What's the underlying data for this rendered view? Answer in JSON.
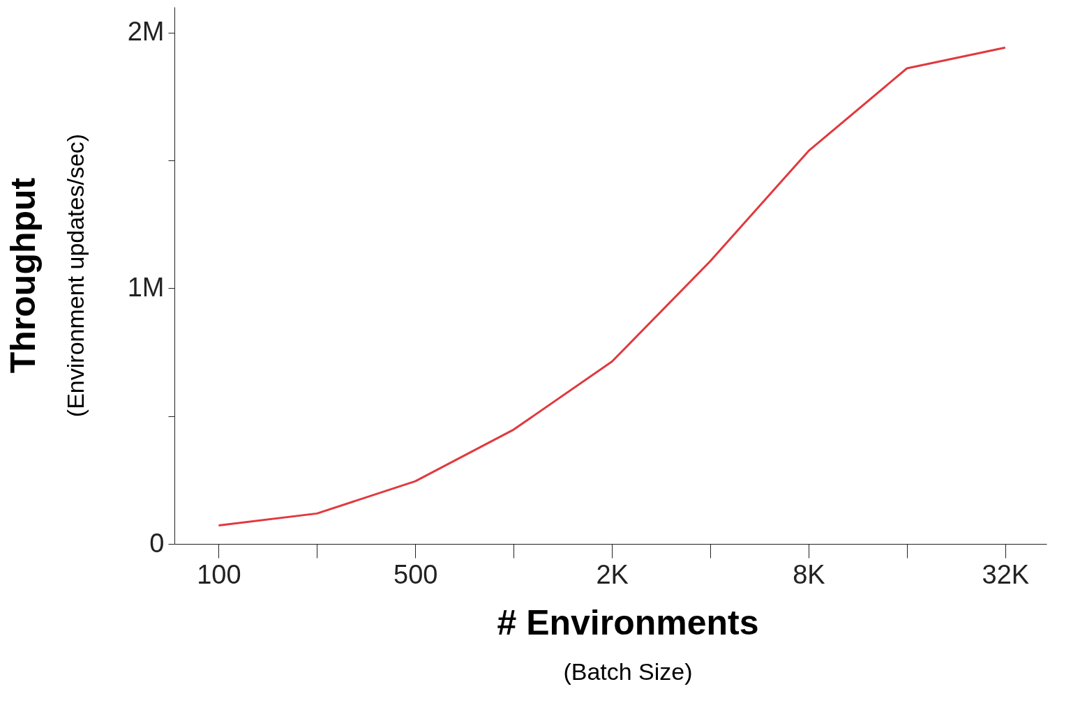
{
  "chart_data": {
    "type": "line",
    "xlabel": "# Environments\n(Batch Size)",
    "ylabel": "Throughput\n(Environment updates/sec)",
    "categories": [
      "100",
      null,
      "500",
      null,
      "2K",
      null,
      "8K",
      null,
      "32K"
    ],
    "series": [
      {
        "color": "#e0393e",
        "values": [
          72000,
          119000,
          245000,
          447000,
          713000,
          1106000,
          1537000,
          1860000,
          1941000
        ]
      }
    ],
    "ylim": [
      0,
      2100000
    ],
    "yticks": [
      {
        "value": 0,
        "label": "0"
      },
      {
        "value": 500000,
        "label": null
      },
      {
        "value": 1000000,
        "label": "1M"
      },
      {
        "value": 1500000,
        "label": null
      },
      {
        "value": 2000000,
        "label": "2M"
      }
    ],
    "grid": false,
    "marker": "none",
    "line_style": "solid"
  }
}
